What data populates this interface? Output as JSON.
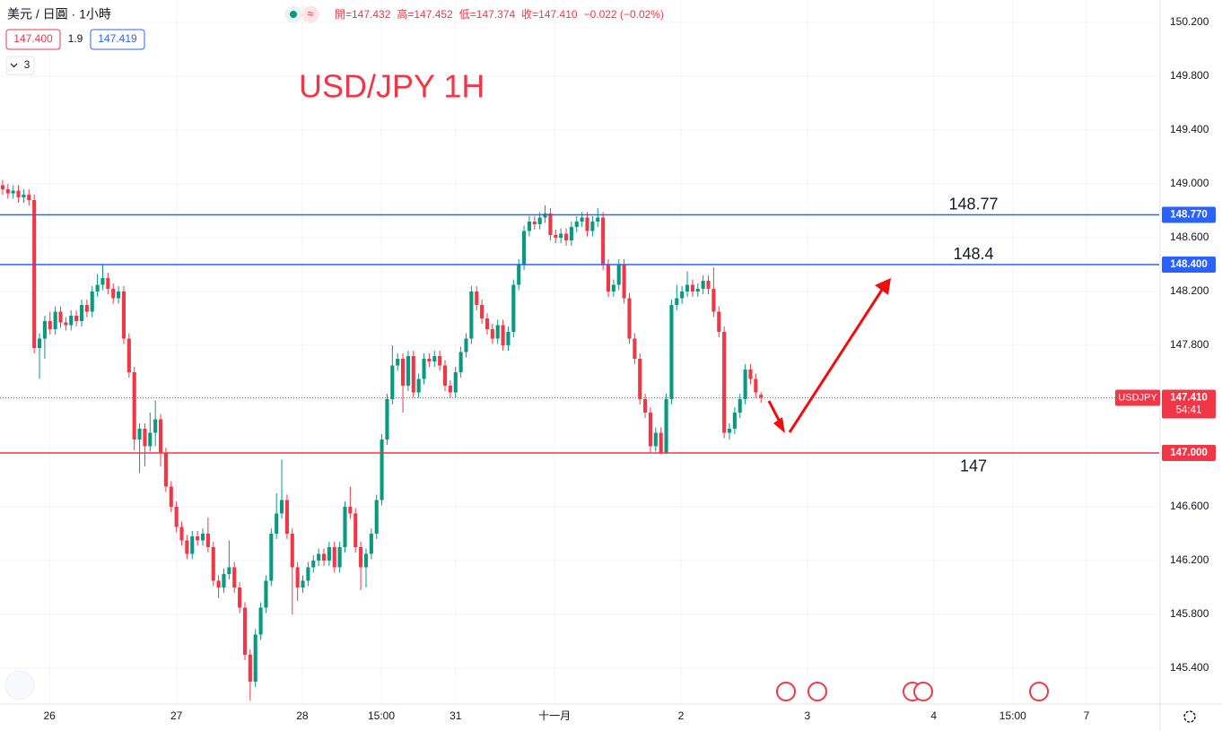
{
  "header": {
    "symbol": "美元 / 日圓 · 1小時",
    "ohlc": [
      "開=147.432",
      "高=147.452",
      "低=147.374",
      "收=147.410",
      "−0.022 (−0.02%)"
    ],
    "bid": "147.400",
    "spread": "1.9",
    "ask": "147.419",
    "indicators": "3"
  },
  "chart_data": {
    "type": "candlestick",
    "title": "USD/JPY 1H",
    "up_color": "#089981",
    "down_color": "#f23645",
    "title_color": "#f23645",
    "grid": true,
    "open": [
      148.99,
      148.96,
      148.93,
      148.95,
      148.9,
      148.92,
      148.88,
      147.78,
      147.85,
      147.98,
      147.92,
      148.05,
      147.97,
      147.95,
      148.02,
      147.98,
      148.1,
      148.05,
      148.2,
      148.25,
      148.3,
      148.22,
      148.15,
      148.2,
      147.85,
      147.6,
      147.1,
      147.18,
      147.05,
      147.15,
      147.25,
      147.0,
      146.75,
      146.6,
      146.45,
      146.35,
      146.25,
      146.38,
      146.35,
      146.4,
      146.3,
      146.05,
      146.0,
      146.1,
      146.15,
      146.0,
      145.85,
      145.5,
      145.3,
      145.65,
      145.85,
      146.05,
      146.4,
      146.55,
      146.65,
      146.4,
      146.15,
      146.0,
      146.05,
      146.15,
      146.2,
      146.25,
      146.2,
      146.3,
      146.15,
      146.3,
      146.6,
      146.55,
      146.3,
      146.15,
      146.25,
      146.4,
      146.65,
      147.1,
      147.4,
      147.65,
      147.7,
      147.5,
      147.72,
      147.45,
      147.55,
      147.7,
      147.68,
      147.72,
      147.65,
      147.5,
      147.45,
      147.6,
      147.75,
      147.85,
      148.2,
      148.1,
      148.0,
      147.92,
      147.85,
      147.95,
      147.8,
      147.9,
      148.25,
      148.4,
      148.65,
      148.72,
      148.7,
      148.75,
      148.78,
      148.62,
      148.6,
      148.63,
      148.58,
      148.68,
      148.72,
      148.75,
      148.65,
      148.72,
      148.75,
      148.4,
      148.2,
      148.25,
      148.4,
      148.15,
      147.85,
      147.7,
      147.4,
      147.3,
      147.05,
      147.15,
      147.0,
      147.4,
      148.1,
      148.15,
      148.2,
      148.25,
      148.2,
      148.22,
      148.28,
      148.22,
      148.05,
      147.9,
      147.15,
      147.18,
      147.3,
      147.4,
      147.62,
      147.55,
      147.432
    ],
    "high": [
      149.03,
      149.0,
      148.99,
      148.99,
      148.96,
      148.96,
      148.92,
      147.89,
      148.02,
      148.05,
      148.09,
      148.09,
      148.01,
      148.06,
      148.06,
      148.14,
      148.14,
      148.24,
      148.33,
      148.4,
      148.34,
      148.26,
      148.24,
      148.24,
      147.89,
      147.64,
      147.22,
      147.22,
      147.3,
      147.39,
      147.29,
      147.04,
      146.79,
      146.64,
      146.49,
      146.39,
      146.42,
      146.42,
      146.44,
      146.52,
      146.34,
      146.09,
      146.14,
      146.35,
      146.19,
      146.04,
      145.89,
      145.54,
      145.69,
      145.89,
      146.09,
      146.44,
      146.7,
      146.95,
      146.69,
      146.44,
      146.19,
      146.09,
      146.19,
      146.24,
      146.29,
      146.29,
      146.34,
      146.34,
      146.34,
      146.64,
      146.75,
      146.59,
      146.34,
      146.29,
      146.44,
      146.69,
      147.14,
      147.44,
      147.8,
      147.74,
      147.74,
      147.76,
      147.76,
      147.59,
      147.74,
      147.74,
      147.76,
      147.76,
      147.69,
      147.54,
      147.64,
      147.79,
      147.89,
      148.24,
      148.24,
      148.14,
      148.04,
      147.96,
      147.99,
      147.99,
      147.94,
      148.29,
      148.44,
      148.69,
      148.76,
      148.76,
      148.79,
      148.84,
      148.82,
      148.66,
      148.67,
      148.67,
      148.72,
      148.76,
      148.79,
      148.79,
      148.76,
      148.82,
      148.79,
      148.44,
      148.29,
      148.44,
      148.44,
      148.19,
      147.89,
      147.74,
      147.44,
      147.34,
      147.19,
      147.19,
      147.44,
      148.14,
      148.25,
      148.24,
      148.35,
      148.29,
      148.26,
      148.32,
      148.32,
      148.38,
      148.09,
      147.94,
      147.22,
      147.34,
      147.44,
      147.66,
      147.66,
      147.59,
      147.452
    ],
    "low": [
      148.92,
      148.89,
      148.89,
      148.86,
      148.86,
      148.84,
      147.74,
      147.55,
      147.7,
      147.88,
      147.88,
      147.93,
      147.91,
      147.91,
      147.94,
      147.94,
      148.01,
      148.01,
      148.16,
      148.21,
      148.18,
      148.11,
      148.11,
      147.81,
      147.56,
      147.02,
      146.85,
      146.9,
      147.01,
      147.05,
      146.9,
      146.71,
      146.56,
      146.41,
      146.31,
      146.21,
      146.21,
      146.31,
      146.31,
      146.26,
      146.01,
      145.92,
      145.96,
      146.06,
      145.96,
      145.81,
      145.46,
      145.16,
      145.26,
      145.61,
      145.81,
      146.01,
      146.36,
      146.51,
      146.36,
      145.8,
      145.9,
      145.96,
      146.01,
      146.11,
      146.16,
      146.16,
      146.16,
      146.11,
      146.11,
      146.26,
      146.51,
      146.26,
      145.98,
      146.0,
      146.21,
      146.36,
      146.61,
      147.06,
      147.36,
      147.61,
      147.3,
      147.46,
      147.41,
      147.41,
      147.51,
      147.64,
      147.64,
      147.61,
      147.46,
      147.41,
      147.41,
      147.56,
      147.71,
      147.81,
      148.06,
      147.96,
      147.88,
      147.81,
      147.81,
      147.76,
      147.76,
      147.86,
      148.21,
      148.36,
      148.61,
      148.66,
      148.66,
      148.71,
      148.58,
      148.56,
      148.56,
      148.54,
      148.54,
      148.64,
      148.68,
      148.61,
      148.61,
      148.68,
      148.36,
      148.16,
      148.16,
      148.21,
      148.11,
      147.81,
      147.66,
      147.36,
      147.26,
      147.0,
      147.01,
      146.99,
      146.99,
      147.36,
      148.06,
      148.11,
      148.16,
      148.16,
      148.16,
      148.18,
      148.18,
      148.01,
      147.86,
      147.11,
      147.1,
      147.14,
      147.26,
      147.36,
      147.51,
      147.41,
      147.374
    ],
    "close": [
      148.96,
      148.93,
      148.95,
      148.9,
      148.92,
      148.88,
      147.78,
      147.85,
      147.98,
      147.92,
      148.05,
      147.97,
      147.95,
      148.02,
      147.98,
      148.1,
      148.05,
      148.2,
      148.25,
      148.3,
      148.22,
      148.15,
      148.2,
      147.85,
      147.6,
      147.1,
      147.18,
      147.05,
      147.15,
      147.25,
      147.0,
      146.75,
      146.6,
      146.45,
      146.35,
      146.25,
      146.38,
      146.35,
      146.4,
      146.3,
      146.05,
      146.0,
      146.1,
      146.15,
      146.0,
      145.85,
      145.5,
      145.3,
      145.65,
      145.85,
      146.05,
      146.4,
      146.55,
      146.65,
      146.4,
      146.15,
      146.0,
      146.05,
      146.15,
      146.2,
      146.25,
      146.2,
      146.3,
      146.15,
      146.3,
      146.6,
      146.55,
      146.3,
      146.15,
      146.25,
      146.4,
      146.65,
      147.1,
      147.4,
      147.65,
      147.7,
      147.5,
      147.72,
      147.45,
      147.55,
      147.7,
      147.68,
      147.72,
      147.65,
      147.5,
      147.45,
      147.6,
      147.75,
      147.85,
      148.2,
      148.1,
      148.0,
      147.92,
      147.85,
      147.95,
      147.8,
      147.9,
      148.25,
      148.4,
      148.65,
      148.72,
      148.7,
      148.75,
      148.78,
      148.62,
      148.6,
      148.63,
      148.58,
      148.68,
      148.72,
      148.75,
      148.65,
      148.72,
      148.75,
      148.4,
      148.2,
      148.25,
      148.4,
      148.15,
      147.85,
      147.7,
      147.4,
      147.3,
      147.05,
      147.15,
      147.0,
      147.4,
      148.1,
      148.15,
      148.2,
      148.25,
      148.2,
      148.22,
      148.28,
      148.22,
      148.05,
      147.9,
      147.15,
      147.18,
      147.3,
      147.4,
      147.62,
      147.55,
      147.45,
      147.41
    ],
    "xlim": [
      -0.5,
      219.6
    ],
    "xticks": [
      {
        "value": 8.9,
        "label": "26"
      },
      {
        "value": 33.0,
        "label": "27"
      },
      {
        "value": 56.9,
        "label": "28"
      },
      {
        "value": 71.9,
        "label": "15:00"
      },
      {
        "value": 86.0,
        "label": "31"
      },
      {
        "value": 104.8,
        "label": "十一月"
      },
      {
        "value": 128.8,
        "label": "2"
      },
      {
        "value": 152.8,
        "label": "3"
      },
      {
        "value": 176.8,
        "label": "4"
      },
      {
        "value": 191.8,
        "label": "15:00"
      },
      {
        "value": 205.8,
        "label": "7"
      }
    ],
    "ylim": [
      145.133,
      150.367
    ],
    "yticks": [
      {
        "value": 150.2,
        "label": "150.200"
      },
      {
        "value": 149.8,
        "label": "149.800"
      },
      {
        "value": 149.4,
        "label": "149.400"
      },
      {
        "value": 149.0,
        "label": "149.000"
      },
      {
        "value": 148.6,
        "label": "148.600"
      },
      {
        "value": 148.2,
        "label": "148.200"
      },
      {
        "value": 147.8,
        "label": "147.800"
      },
      {
        "value": 147.4,
        "label": "147.400"
      },
      {
        "value": 147.0,
        "label": "147.000"
      },
      {
        "value": 146.6,
        "label": "146.600"
      },
      {
        "value": 146.2,
        "label": "146.200"
      },
      {
        "value": 145.8,
        "label": "145.800"
      },
      {
        "value": 145.4,
        "label": "145.400"
      }
    ],
    "levels": [
      {
        "value": 148.77,
        "label": "148.77",
        "tag": "148.770",
        "color": "#2962ff",
        "label_side": "above"
      },
      {
        "value": 148.4,
        "label": "148.4",
        "tag": "148.400",
        "color": "#2962ff",
        "label_side": "above"
      },
      {
        "value": 147.0,
        "label": "147",
        "tag": "147.000",
        "color": "#f23645",
        "label_side": "below"
      }
    ],
    "last_price": {
      "value": 147.41,
      "symbol": "USDJPY",
      "tag": "147.410",
      "countdown": "54:41",
      "color": "#f23645"
    }
  }
}
